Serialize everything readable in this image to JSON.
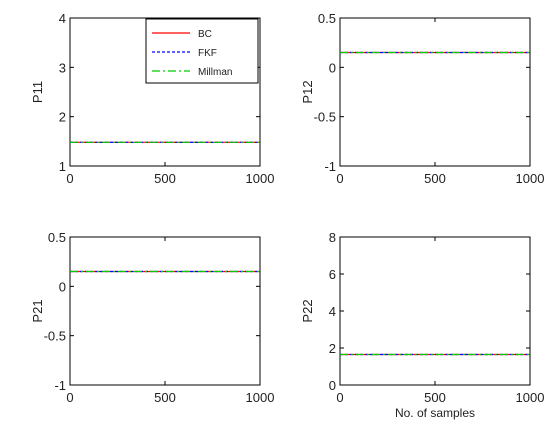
{
  "chart_data": [
    {
      "type": "line",
      "ylabel": "P11",
      "xlabel": "",
      "xlim": [
        0,
        1000
      ],
      "ylim": [
        1,
        4
      ],
      "xticks": [
        0,
        500,
        1000
      ],
      "yticks": [
        1,
        2,
        3,
        4
      ],
      "x": [
        0,
        1000
      ],
      "series": [
        {
          "name": "BC",
          "color": "#ff0000",
          "dash": "solid",
          "values": [
            1.48,
            1.48
          ]
        },
        {
          "name": "FKF",
          "color": "#0000ff",
          "dash": "dashed",
          "values": [
            1.48,
            1.48
          ]
        },
        {
          "name": "Millman",
          "color": "#00cc00",
          "dash": "dashdot",
          "values": [
            1.48,
            1.48
          ]
        }
      ],
      "legend": {
        "placement": "top-right",
        "entries": [
          "BC",
          "FKF",
          "Millman"
        ]
      }
    },
    {
      "type": "line",
      "ylabel": "P12",
      "xlabel": "",
      "xlim": [
        0,
        1000
      ],
      "ylim": [
        -1,
        0.5
      ],
      "xticks": [
        0,
        500,
        1000
      ],
      "yticks": [
        -1,
        -0.5,
        0,
        0.5
      ],
      "x": [
        0,
        1000
      ],
      "series": [
        {
          "name": "BC",
          "color": "#ff0000",
          "dash": "solid",
          "values": [
            0.15,
            0.15
          ]
        },
        {
          "name": "FKF",
          "color": "#0000ff",
          "dash": "dashed",
          "values": [
            0.15,
            0.15
          ]
        },
        {
          "name": "Millman",
          "color": "#00cc00",
          "dash": "dashdot",
          "values": [
            0.15,
            0.15
          ]
        }
      ]
    },
    {
      "type": "line",
      "ylabel": "P21",
      "xlabel": "",
      "xlim": [
        0,
        1000
      ],
      "ylim": [
        -1,
        0.5
      ],
      "xticks": [
        0,
        500,
        1000
      ],
      "yticks": [
        -1,
        -0.5,
        0,
        0.5
      ],
      "x": [
        0,
        1000
      ],
      "series": [
        {
          "name": "BC",
          "color": "#ff0000",
          "dash": "solid",
          "values": [
            0.15,
            0.15
          ]
        },
        {
          "name": "FKF",
          "color": "#0000ff",
          "dash": "dashed",
          "values": [
            0.15,
            0.15
          ]
        },
        {
          "name": "Millman",
          "color": "#00cc00",
          "dash": "dashdot",
          "values": [
            0.15,
            0.15
          ]
        }
      ]
    },
    {
      "type": "line",
      "ylabel": "P22",
      "xlabel": "No. of samples",
      "xlim": [
        0,
        1000
      ],
      "ylim": [
        0,
        8
      ],
      "xticks": [
        0,
        500,
        1000
      ],
      "yticks": [
        0,
        2,
        4,
        6,
        8
      ],
      "x": [
        0,
        1000
      ],
      "series": [
        {
          "name": "BC",
          "color": "#ff0000",
          "dash": "solid",
          "values": [
            1.65,
            1.65
          ]
        },
        {
          "name": "FKF",
          "color": "#0000ff",
          "dash": "dashed",
          "values": [
            1.65,
            1.65
          ]
        },
        {
          "name": "Millman",
          "color": "#00cc00",
          "dash": "dashdot",
          "values": [
            1.65,
            1.65
          ]
        }
      ]
    }
  ]
}
